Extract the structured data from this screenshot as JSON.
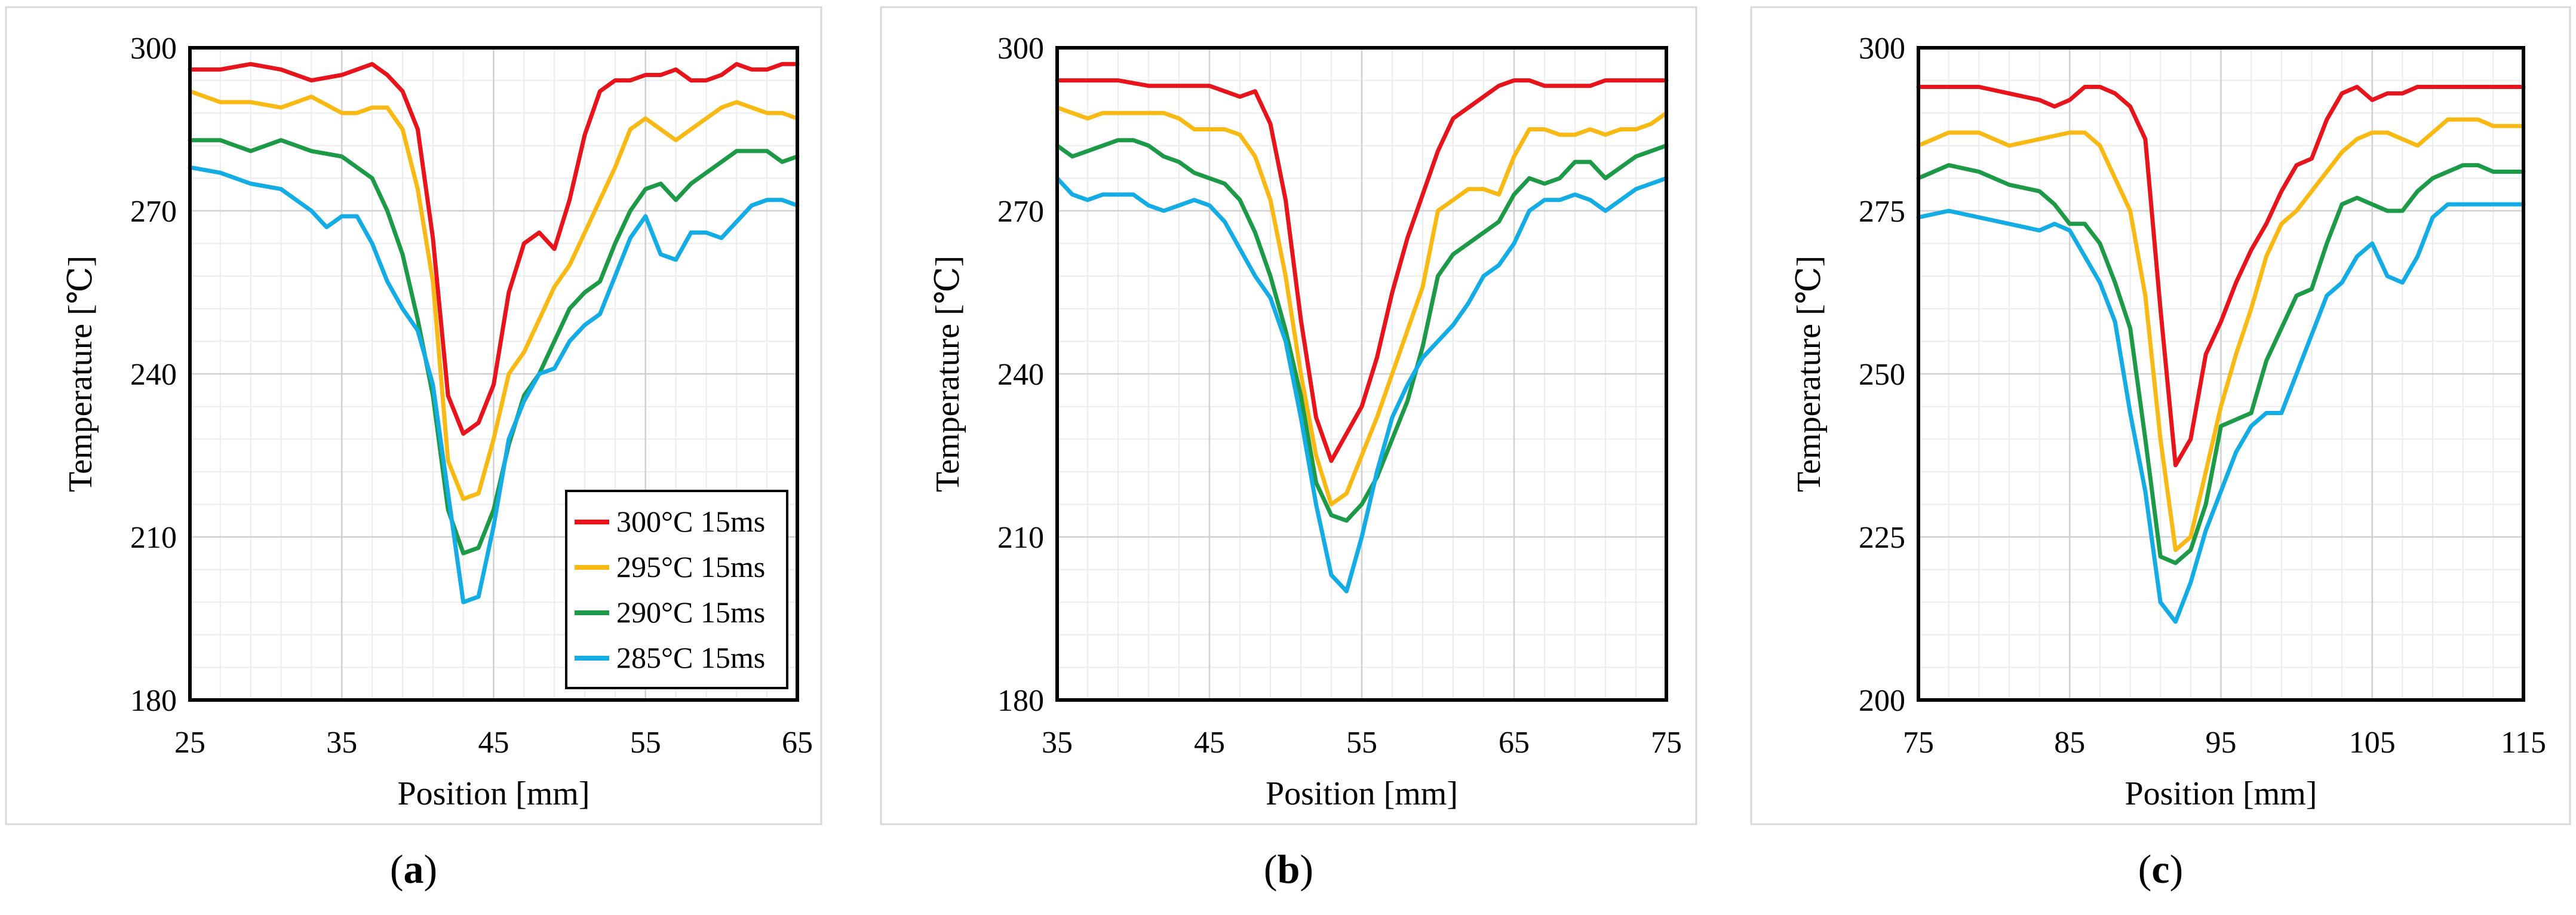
{
  "chart_data": [
    {
      "type": "line",
      "panel_label": "(a)",
      "xlabel": "Position [mm]",
      "ylabel": "Temperature [℃]",
      "xlim": [
        25,
        65
      ],
      "ylim": [
        180,
        300
      ],
      "xticks": [
        25,
        35,
        45,
        55,
        65
      ],
      "yticks": [
        180,
        210,
        240,
        270,
        300
      ],
      "legend": {
        "placement": "bottom-right"
      },
      "series": [
        {
          "name": "300°C 15ms",
          "color": "#e8141b",
          "x": [
            25,
            27,
            29,
            31,
            33,
            35,
            36,
            37,
            38,
            39,
            40,
            41,
            42,
            43,
            44,
            45,
            46,
            47,
            48,
            49,
            50,
            51,
            52,
            53,
            54,
            55,
            56,
            57,
            58,
            59,
            60,
            61,
            62,
            63,
            64,
            65
          ],
          "y": [
            296,
            296,
            297,
            296,
            294,
            295,
            296,
            297,
            295,
            292,
            285,
            265,
            236,
            229,
            231,
            238,
            255,
            264,
            266,
            263,
            272,
            284,
            292,
            294,
            294,
            295,
            295,
            296,
            294,
            294,
            295,
            297,
            296,
            296,
            297,
            297
          ]
        },
        {
          "name": "295°C 15ms",
          "color": "#f9b914",
          "x": [
            25,
            27,
            29,
            31,
            33,
            35,
            36,
            37,
            38,
            39,
            40,
            41,
            42,
            43,
            44,
            45,
            46,
            47,
            48,
            49,
            50,
            51,
            52,
            53,
            54,
            55,
            56,
            57,
            58,
            59,
            60,
            61,
            62,
            63,
            64,
            65
          ],
          "y": [
            292,
            290,
            290,
            289,
            291,
            288,
            288,
            289,
            289,
            285,
            274,
            257,
            224,
            217,
            218,
            228,
            240,
            244,
            250,
            256,
            260,
            266,
            272,
            278,
            285,
            287,
            285,
            283,
            285,
            287,
            289,
            290,
            289,
            288,
            288,
            287
          ]
        },
        {
          "name": "290°C 15ms",
          "color": "#1d9a48",
          "x": [
            25,
            27,
            29,
            31,
            33,
            35,
            36,
            37,
            38,
            39,
            40,
            41,
            42,
            43,
            44,
            45,
            46,
            47,
            48,
            49,
            50,
            51,
            52,
            53,
            54,
            55,
            56,
            57,
            58,
            59,
            60,
            61,
            62,
            63,
            64,
            65
          ],
          "y": [
            283,
            283,
            281,
            283,
            281,
            280,
            278,
            276,
            270,
            262,
            250,
            236,
            215,
            207,
            208,
            215,
            227,
            236,
            240,
            246,
            252,
            255,
            257,
            264,
            270,
            274,
            275,
            272,
            275,
            277,
            279,
            281,
            281,
            281,
            279,
            280
          ]
        },
        {
          "name": "285°C 15ms",
          "color": "#14ace4",
          "x": [
            25,
            27,
            29,
            31,
            33,
            34,
            35,
            36,
            37,
            38,
            39,
            40,
            41,
            42,
            43,
            44,
            45,
            46,
            47,
            48,
            49,
            50,
            51,
            52,
            53,
            54,
            55,
            56,
            57,
            58,
            59,
            60,
            61,
            62,
            63,
            64,
            65
          ],
          "y": [
            278,
            277,
            275,
            274,
            270,
            267,
            269,
            269,
            264,
            257,
            252,
            248,
            238,
            218,
            198,
            199,
            212,
            228,
            235,
            240,
            241,
            246,
            249,
            251,
            258,
            265,
            269,
            262,
            261,
            266,
            266,
            265,
            268,
            271,
            272,
            272,
            271
          ]
        }
      ]
    },
    {
      "type": "line",
      "panel_label": "(b)",
      "xlabel": "Position [mm]",
      "ylabel": "Temperature [℃]",
      "xlim": [
        35,
        75
      ],
      "ylim": [
        180,
        300
      ],
      "xticks": [
        35,
        45,
        55,
        65,
        75
      ],
      "yticks": [
        180,
        210,
        240,
        270,
        300
      ],
      "series": [
        {
          "name": "300°C 15ms",
          "color": "#e8141b",
          "x": [
            35,
            37,
            39,
            41,
            43,
            45,
            46,
            47,
            48,
            49,
            50,
            51,
            52,
            53,
            54,
            55,
            56,
            57,
            58,
            59,
            60,
            61,
            62,
            63,
            64,
            65,
            66,
            67,
            68,
            69,
            70,
            71,
            72,
            73,
            74,
            75
          ],
          "y": [
            294,
            294,
            294,
            293,
            293,
            293,
            292,
            291,
            292,
            286,
            272,
            250,
            232,
            224,
            229,
            234,
            243,
            255,
            265,
            273,
            281,
            287,
            289,
            291,
            293,
            294,
            294,
            293,
            293,
            293,
            293,
            294,
            294,
            294,
            294,
            294
          ]
        },
        {
          "name": "295°C 15ms",
          "color": "#f9b914",
          "x": [
            35,
            36,
            37,
            38,
            39,
            40,
            41,
            42,
            43,
            44,
            45,
            46,
            47,
            48,
            49,
            50,
            51,
            52,
            53,
            54,
            55,
            56,
            57,
            58,
            59,
            60,
            61,
            62,
            63,
            64,
            65,
            66,
            67,
            68,
            69,
            70,
            71,
            72,
            73,
            74,
            75
          ],
          "y": [
            289,
            288,
            287,
            288,
            288,
            288,
            288,
            288,
            287,
            285,
            285,
            285,
            284,
            280,
            272,
            258,
            240,
            225,
            216,
            218,
            225,
            232,
            240,
            248,
            256,
            270,
            272,
            274,
            274,
            273,
            280,
            285,
            285,
            284,
            284,
            285,
            284,
            285,
            285,
            286,
            288
          ]
        },
        {
          "name": "290°C 15ms",
          "color": "#1d9a48",
          "x": [
            35,
            36,
            37,
            38,
            39,
            40,
            41,
            42,
            43,
            44,
            45,
            46,
            47,
            48,
            49,
            50,
            51,
            52,
            53,
            54,
            55,
            56,
            57,
            58,
            59,
            60,
            61,
            62,
            63,
            64,
            65,
            66,
            67,
            68,
            69,
            70,
            71,
            72,
            73,
            74,
            75
          ],
          "y": [
            282,
            280,
            281,
            282,
            283,
            283,
            282,
            280,
            279,
            277,
            276,
            275,
            272,
            266,
            258,
            248,
            236,
            220,
            214,
            213,
            216,
            221,
            228,
            235,
            245,
            258,
            262,
            264,
            266,
            268,
            273,
            276,
            275,
            276,
            279,
            279,
            276,
            278,
            280,
            281,
            282
          ]
        },
        {
          "name": "285°C 15ms",
          "color": "#14ace4",
          "x": [
            35,
            36,
            37,
            38,
            39,
            40,
            41,
            42,
            43,
            44,
            45,
            46,
            47,
            48,
            49,
            50,
            51,
            52,
            53,
            54,
            55,
            56,
            57,
            58,
            59,
            60,
            61,
            62,
            63,
            64,
            65,
            66,
            67,
            68,
            69,
            70,
            71,
            72,
            73,
            74,
            75
          ],
          "y": [
            276,
            273,
            272,
            273,
            273,
            273,
            271,
            270,
            271,
            272,
            271,
            268,
            263,
            258,
            254,
            246,
            232,
            216,
            203,
            200,
            210,
            222,
            232,
            238,
            243,
            246,
            249,
            253,
            258,
            260,
            264,
            270,
            272,
            272,
            273,
            272,
            270,
            272,
            274,
            275,
            276
          ]
        }
      ]
    },
    {
      "type": "line",
      "panel_label": "(c)",
      "xlabel": "Position [mm]",
      "ylabel": "Temperature [℃]",
      "xlim": [
        75,
        115
      ],
      "ylim": [
        200,
        300
      ],
      "xticks": [
        75,
        85,
        95,
        105,
        115
      ],
      "yticks": [
        200,
        225,
        250,
        275,
        300
      ],
      "series": [
        {
          "name": "300°C 15ms",
          "color": "#e8141b",
          "x": [
            75,
            77,
            79,
            81,
            83,
            84,
            85,
            86,
            87,
            88,
            89,
            90,
            91,
            92,
            93,
            94,
            95,
            96,
            97,
            98,
            99,
            100,
            101,
            102,
            103,
            104,
            105,
            106,
            107,
            108,
            109,
            110,
            111,
            112,
            113,
            114,
            115
          ],
          "y": [
            294,
            294,
            294,
            293,
            292,
            291,
            292,
            294,
            294,
            293,
            291,
            286,
            260,
            236,
            240,
            253,
            258,
            264,
            269,
            273,
            278,
            282,
            283,
            289,
            293,
            294,
            292,
            293,
            293,
            294,
            294,
            294,
            294,
            294,
            294,
            294,
            294
          ]
        },
        {
          "name": "295°C 15ms",
          "color": "#f9b914",
          "x": [
            75,
            77,
            79,
            81,
            83,
            85,
            86,
            87,
            88,
            89,
            90,
            91,
            92,
            93,
            94,
            95,
            96,
            97,
            98,
            99,
            100,
            101,
            102,
            103,
            104,
            105,
            106,
            107,
            108,
            109,
            110,
            111,
            112,
            113,
            114,
            115
          ],
          "y": [
            285,
            287,
            287,
            285,
            286,
            287,
            287,
            285,
            280,
            275,
            262,
            240,
            223,
            225,
            235,
            245,
            253,
            260,
            268,
            273,
            275,
            278,
            281,
            284,
            286,
            287,
            287,
            286,
            285,
            287,
            289,
            289,
            289,
            288,
            288,
            288
          ]
        },
        {
          "name": "290°C 15ms",
          "color": "#1d9a48",
          "x": [
            75,
            77,
            79,
            81,
            83,
            84,
            85,
            86,
            87,
            88,
            89,
            90,
            91,
            92,
            93,
            94,
            95,
            96,
            97,
            98,
            99,
            100,
            101,
            102,
            103,
            104,
            105,
            106,
            107,
            108,
            109,
            110,
            111,
            112,
            113,
            114,
            115
          ],
          "y": [
            280,
            282,
            281,
            279,
            278,
            276,
            273,
            273,
            270,
            264,
            257,
            240,
            222,
            221,
            223,
            230,
            242,
            243,
            244,
            252,
            257,
            262,
            263,
            270,
            276,
            277,
            276,
            275,
            275,
            278,
            280,
            281,
            282,
            282,
            281,
            281,
            281
          ]
        },
        {
          "name": "285°C 15ms",
          "color": "#14ace4",
          "x": [
            75,
            77,
            79,
            81,
            83,
            84,
            85,
            86,
            87,
            88,
            89,
            90,
            91,
            92,
            93,
            94,
            95,
            96,
            97,
            98,
            99,
            100,
            101,
            102,
            103,
            104,
            105,
            106,
            107,
            108,
            109,
            110,
            111,
            112,
            113,
            114,
            115
          ],
          "y": [
            274,
            275,
            274,
            273,
            272,
            273,
            272,
            268,
            264,
            258,
            244,
            232,
            215,
            212,
            218,
            226,
            232,
            238,
            242,
            244,
            244,
            250,
            256,
            262,
            264,
            268,
            270,
            265,
            264,
            268,
            274,
            276,
            276,
            276,
            276,
            276,
            276
          ]
        }
      ]
    }
  ]
}
